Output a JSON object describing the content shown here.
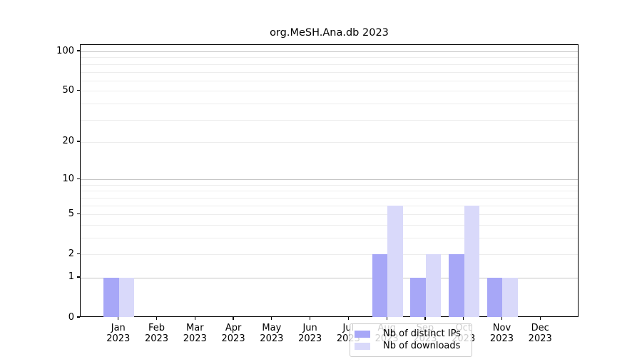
{
  "chart": {
    "title": "org.MeSH.Ana.db 2023",
    "chart_data": {
      "type": "bar",
      "scale": "log1p",
      "categories": [
        {
          "month": "Jan",
          "year": "2023"
        },
        {
          "month": "Feb",
          "year": "2023"
        },
        {
          "month": "Mar",
          "year": "2023"
        },
        {
          "month": "Apr",
          "year": "2023"
        },
        {
          "month": "May",
          "year": "2023"
        },
        {
          "month": "Jun",
          "year": "2023"
        },
        {
          "month": "Jul",
          "year": "2023"
        },
        {
          "month": "Aug",
          "year": "2023"
        },
        {
          "month": "Sep",
          "year": "2023"
        },
        {
          "month": "Oct",
          "year": "2023"
        },
        {
          "month": "Nov",
          "year": "2023"
        },
        {
          "month": "Dec",
          "year": "2023"
        }
      ],
      "series": [
        {
          "name": "Nb of distinct IPs",
          "color": "#a7a7f7",
          "values": [
            1,
            0,
            0,
            0,
            0,
            0,
            0,
            2,
            1,
            2,
            1,
            0
          ]
        },
        {
          "name": "Nb of downloads",
          "color": "#d9d9fa",
          "values": [
            1,
            0,
            0,
            0,
            0,
            0,
            0,
            6,
            2,
            6,
            1,
            0
          ]
        }
      ],
      "title": "org.MeSH.Ana.db 2023",
      "xlabel": "",
      "ylabel": "",
      "ylim": [
        0,
        112
      ],
      "yticks": [
        0,
        1,
        2,
        5,
        10,
        20,
        50,
        100
      ],
      "grid_major": [
        1,
        10,
        100
      ],
      "grid_minor": [
        2,
        3,
        4,
        5,
        6,
        7,
        8,
        9,
        20,
        30,
        40,
        50,
        60,
        70,
        80,
        90
      ],
      "grid": "on",
      "legend_position": "lower-center-inside"
    },
    "colors": {
      "major_grid": "#c6c6c6",
      "minor_grid": "#ededed",
      "axis": "#000000",
      "background": "#ffffff"
    }
  }
}
